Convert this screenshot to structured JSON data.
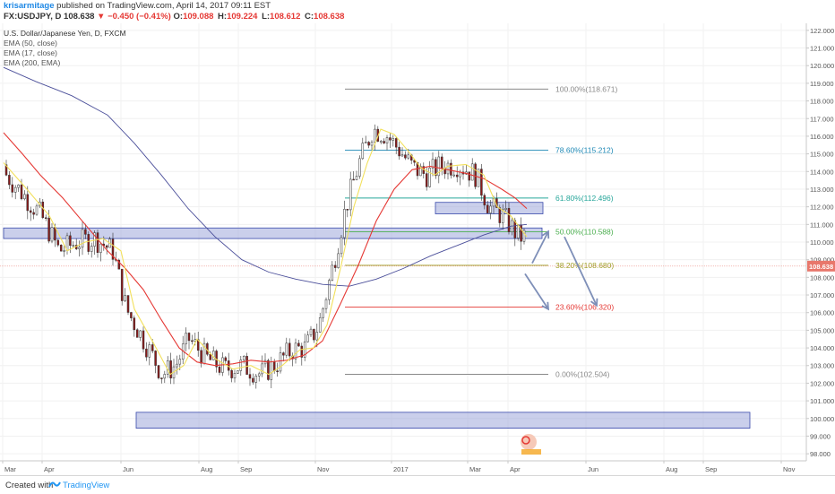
{
  "header": {
    "author": "krisarmitage",
    "published_text": "published on TradingView.com, April 14, 2017 09:11 EST",
    "symbol": "FX:USDJPY, D",
    "last": "108.638",
    "change": "▼ −0.450 (−0.41%)",
    "ohlc": [
      {
        "k": "O:",
        "v": "109.088"
      },
      {
        "k": "H:",
        "v": "109.224"
      },
      {
        "k": "L:",
        "v": "108.612"
      },
      {
        "k": "C:",
        "v": "108.638"
      }
    ]
  },
  "footer": {
    "created_label": "Created with",
    "brand": "TradingView"
  },
  "colors": {
    "candle_up": "#ffffff",
    "candle_down": "#8b1a1a",
    "wick": "#333333",
    "ema50": "#e53935",
    "ema17": "#f2e05c",
    "ema200": "#4b4f9a",
    "zone_fill": "#9fa8da",
    "zone_stroke": "#3949ab",
    "arrow": "#7e8fb8",
    "price_tag": "#e8776b"
  },
  "chart_data": {
    "type": "candlestick",
    "title": "U.S. Dollar/Japanese Yen, D, FXCM",
    "indicators": [
      "EMA (50, close)",
      "EMA (17, close)",
      "EMA (200, EMA)"
    ],
    "yaxis": {
      "range": [
        97.6,
        122.4
      ],
      "ticks": [
        "98.000",
        "99.000",
        "100.000",
        "101.000",
        "102.000",
        "103.000",
        "104.000",
        "105.000",
        "106.000",
        "107.000",
        "108.000",
        "109.000",
        "110.000",
        "111.000",
        "112.000",
        "113.000",
        "114.000",
        "115.000",
        "116.000",
        "117.000",
        "118.000",
        "119.000",
        "120.000",
        "121.000",
        "122.000"
      ]
    },
    "xaxis": {
      "labels": [
        {
          "label": "Mar",
          "x": 3
        },
        {
          "label": "Apr",
          "x": 47
        },
        {
          "label": "Jun",
          "x": 135
        },
        {
          "label": "Aug",
          "x": 222
        },
        {
          "label": "Sep",
          "x": 266
        },
        {
          "label": "Nov",
          "x": 352
        },
        {
          "label": "2017",
          "x": 437
        },
        {
          "label": "Mar",
          "x": 522
        },
        {
          "label": "Apr",
          "x": 567
        },
        {
          "label": "Jun",
          "x": 654
        },
        {
          "label": "Aug",
          "x": 741
        },
        {
          "label": "Sep",
          "x": 785
        },
        {
          "label": "Nov",
          "x": 872
        }
      ]
    },
    "last_price": {
      "value": 108.638,
      "label": "108.638"
    },
    "fibonacci": [
      {
        "label": "100.00%(118.671)",
        "value": 118.671,
        "color": "#8a8a8a"
      },
      {
        "label": "78.60%(115.212)",
        "value": 115.212,
        "color": "#1e88b5"
      },
      {
        "label": "61.80%(112.496)",
        "value": 112.496,
        "color": "#26a69a"
      },
      {
        "label": "50.00%(110.588)",
        "value": 110.588,
        "color": "#4caf50"
      },
      {
        "label": "38.20%(108.680)",
        "value": 108.68,
        "color": "#9e9d24"
      },
      {
        "label": "23.60%(106.320)",
        "value": 106.32,
        "color": "#e53935"
      },
      {
        "label": "0.00%(102.504)",
        "value": 102.504,
        "color": "#8a8a8a"
      }
    ],
    "zones": [
      {
        "name": "zone-110",
        "x": [
          4,
          605
        ],
        "y": [
          110.2,
          110.8
        ]
      },
      {
        "name": "zone-112",
        "x": [
          486,
          606
        ],
        "y": [
          111.6,
          112.25
        ]
      },
      {
        "name": "zone-100",
        "x": [
          152,
          837
        ],
        "y": [
          99.45,
          100.35
        ]
      }
    ],
    "arrows": [
      {
        "name": "arrow-down-1",
        "from": [
          586,
          108.2
        ],
        "to": [
          612,
          106.2
        ]
      },
      {
        "name": "arrow-up",
        "from": [
          594,
          108.8
        ],
        "to": [
          612,
          110.6
        ]
      },
      {
        "name": "arrow-down-2",
        "from": [
          630,
          110.3
        ],
        "to": [
          666,
          106.4
        ]
      }
    ],
    "ema_samples": {
      "ema200": [
        [
          4,
          119.9
        ],
        [
          40,
          119.1
        ],
        [
          80,
          118.3
        ],
        [
          120,
          117.2
        ],
        [
          150,
          115.6
        ],
        [
          180,
          113.8
        ],
        [
          210,
          111.9
        ],
        [
          240,
          110.3
        ],
        [
          270,
          109.0
        ],
        [
          300,
          108.3
        ],
        [
          330,
          107.9
        ],
        [
          360,
          107.6
        ],
        [
          390,
          107.5
        ],
        [
          420,
          107.9
        ],
        [
          450,
          108.5
        ],
        [
          480,
          109.2
        ],
        [
          510,
          109.8
        ],
        [
          540,
          110.4
        ],
        [
          570,
          110.9
        ],
        [
          588,
          111.0
        ]
      ],
      "ema50": [
        [
          4,
          116.2
        ],
        [
          25,
          115.0
        ],
        [
          45,
          113.8
        ],
        [
          70,
          112.5
        ],
        [
          95,
          111.0
        ],
        [
          120,
          109.5
        ],
        [
          140,
          108.5
        ],
        [
          160,
          107.3
        ],
        [
          180,
          105.6
        ],
        [
          200,
          104.0
        ],
        [
          220,
          103.2
        ],
        [
          240,
          103.0
        ],
        [
          260,
          103.1
        ],
        [
          280,
          103.3
        ],
        [
          300,
          103.2
        ],
        [
          320,
          103.3
        ],
        [
          340,
          103.6
        ],
        [
          360,
          104.4
        ],
        [
          380,
          106.5
        ],
        [
          400,
          108.7
        ],
        [
          420,
          111.2
        ],
        [
          440,
          113.0
        ],
        [
          460,
          114.1
        ],
        [
          480,
          114.3
        ],
        [
          500,
          114.1
        ],
        [
          520,
          113.9
        ],
        [
          540,
          113.6
        ],
        [
          560,
          113.0
        ],
        [
          575,
          112.5
        ],
        [
          588,
          111.9
        ]
      ],
      "ema17": [
        [
          4,
          114.5
        ],
        [
          30,
          113.0
        ],
        [
          55,
          111.5
        ],
        [
          75,
          109.5
        ],
        [
          95,
          110.0
        ],
        [
          115,
          110.2
        ],
        [
          135,
          109.5
        ],
        [
          150,
          106.2
        ],
        [
          170,
          104.4
        ],
        [
          190,
          102.5
        ],
        [
          205,
          103.0
        ],
        [
          220,
          104.5
        ],
        [
          240,
          103.4
        ],
        [
          260,
          102.8
        ],
        [
          280,
          103.0
        ],
        [
          300,
          102.5
        ],
        [
          315,
          103.0
        ],
        [
          335,
          103.9
        ],
        [
          350,
          104.0
        ],
        [
          365,
          105.3
        ],
        [
          380,
          108.5
        ],
        [
          395,
          112.0
        ],
        [
          410,
          114.5
        ],
        [
          425,
          116.4
        ],
        [
          440,
          116.1
        ],
        [
          455,
          115.2
        ],
        [
          470,
          114.2
        ],
        [
          485,
          113.8
        ],
        [
          500,
          114.3
        ],
        [
          520,
          114.4
        ],
        [
          540,
          113.8
        ],
        [
          555,
          112.0
        ],
        [
          570,
          111.5
        ],
        [
          588,
          110.3
        ]
      ]
    },
    "series_note": "daily candles (approximate)"
  }
}
